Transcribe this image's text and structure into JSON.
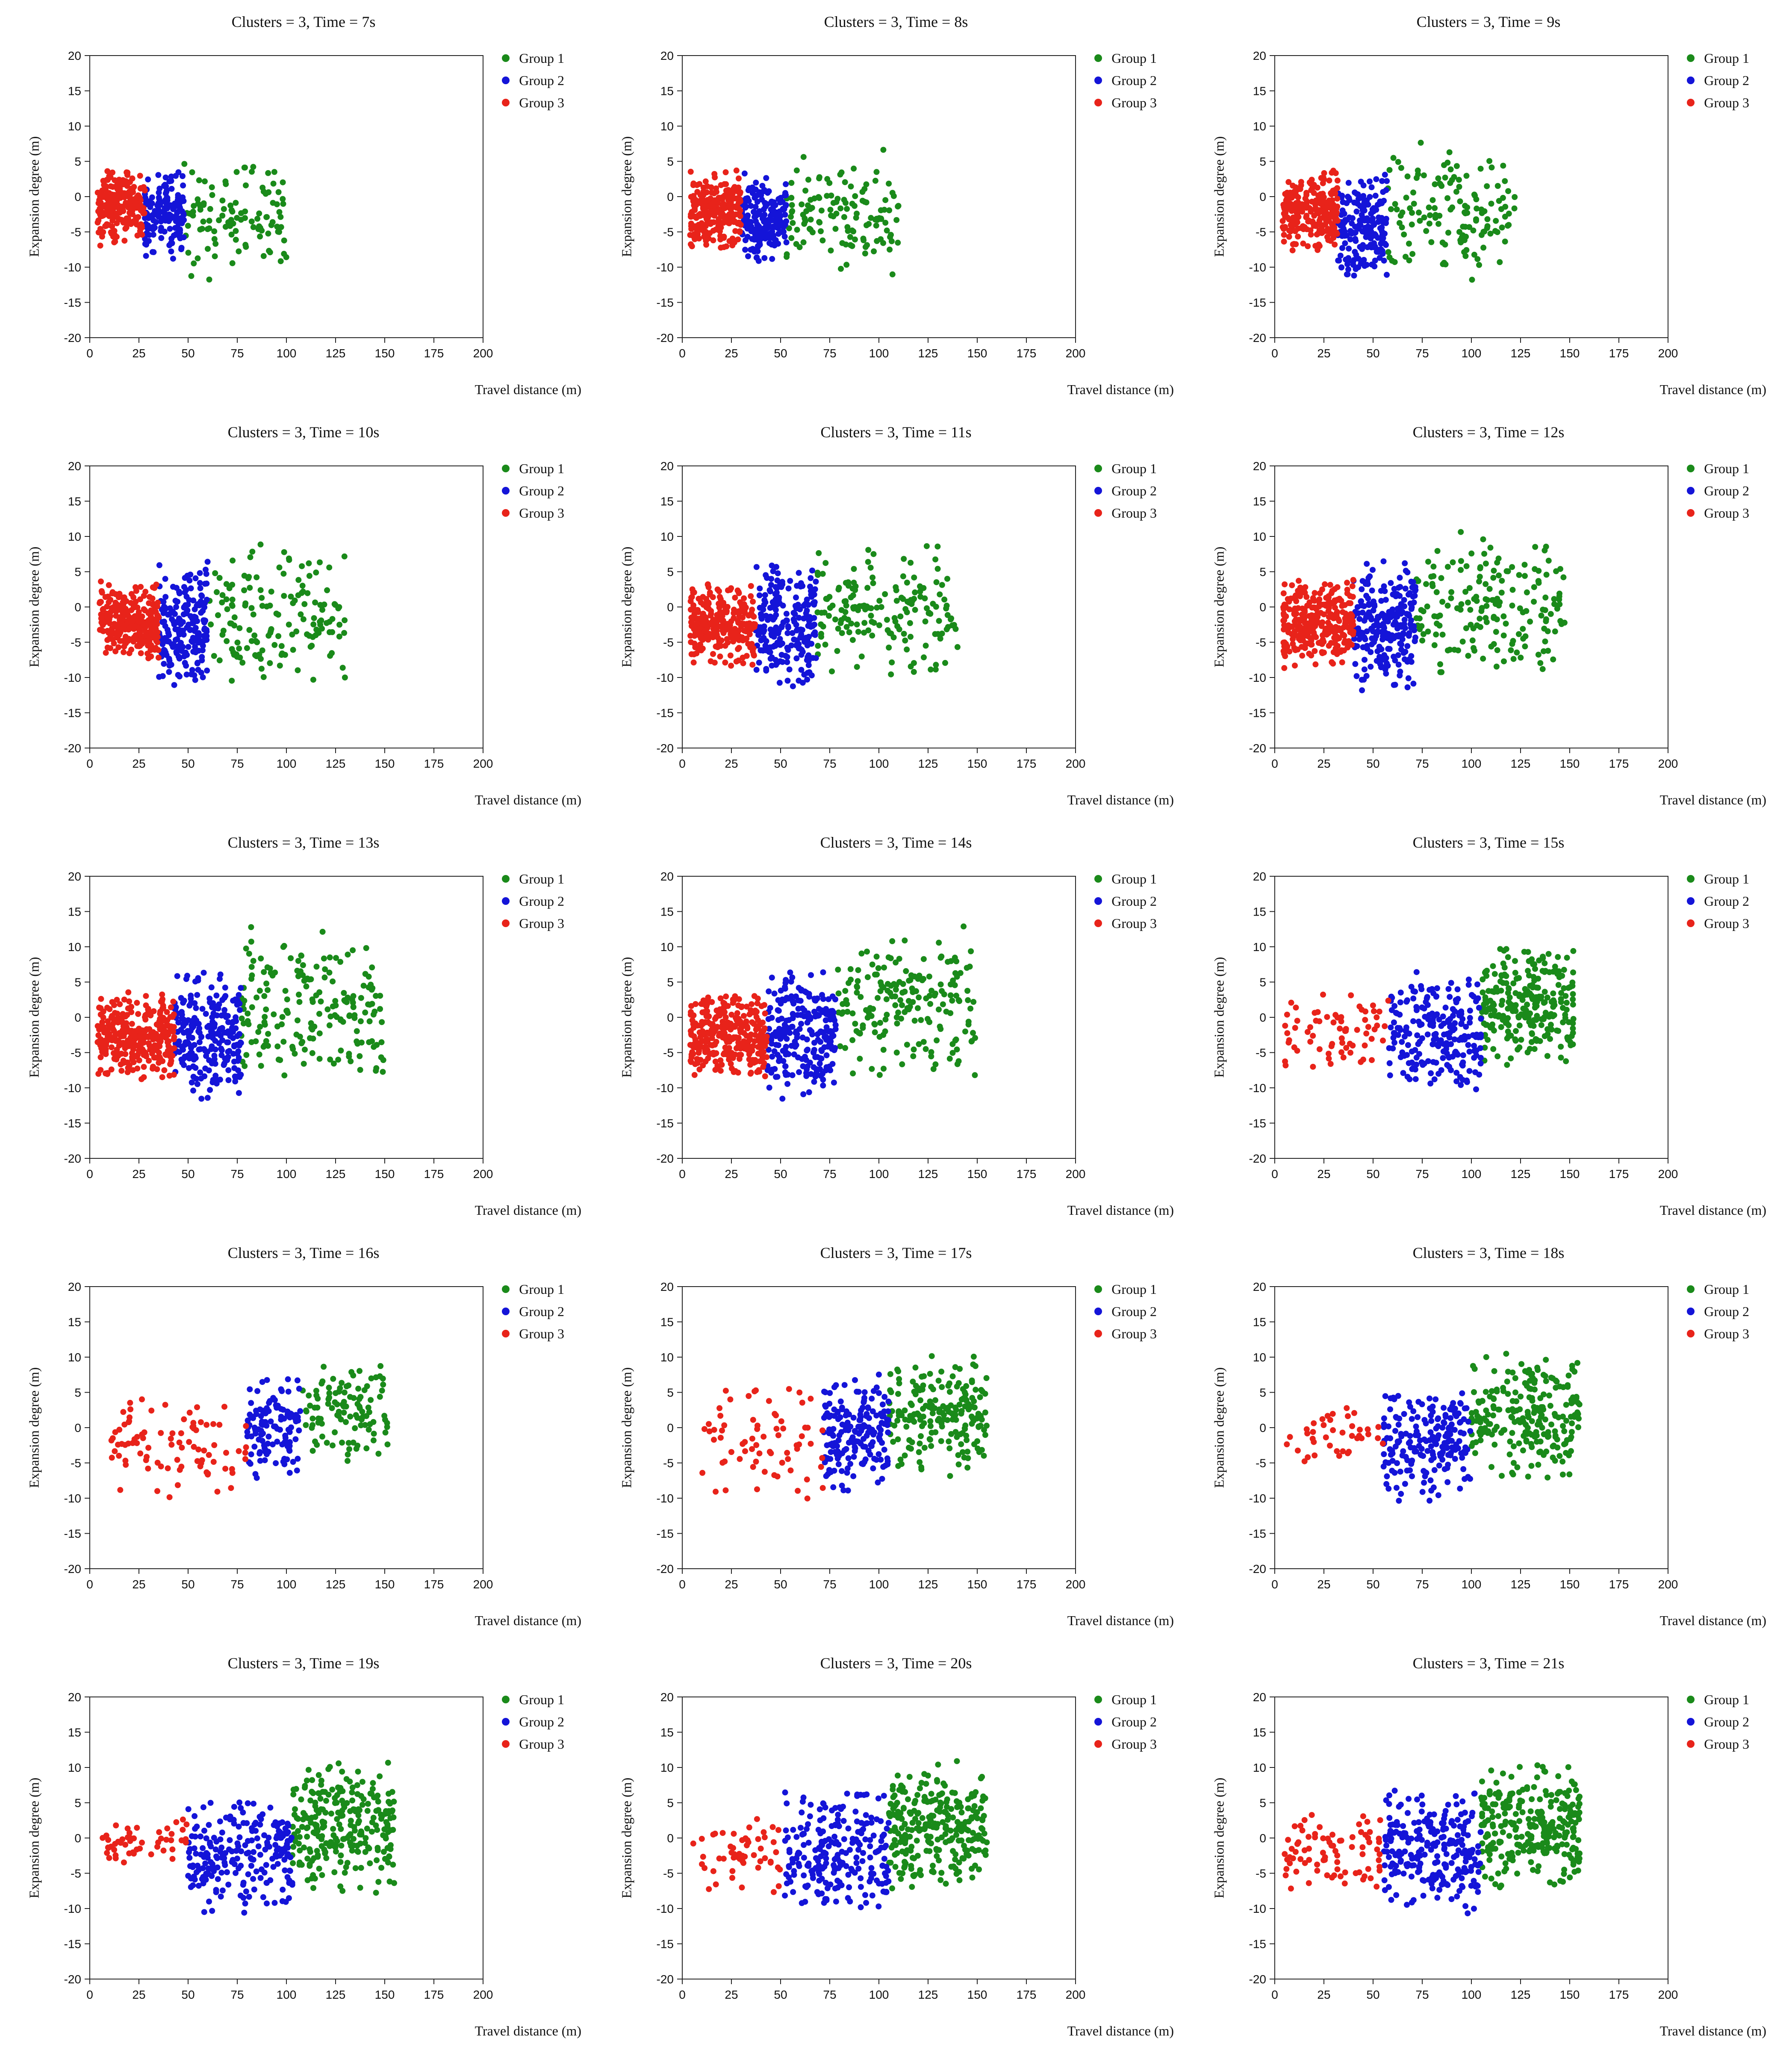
{
  "colors": {
    "group1": "#1a8a1a",
    "group2": "#1414d8",
    "group3": "#e8231a",
    "axis": "#222222"
  },
  "axis_labels": {
    "x": "Travel distance (m)",
    "y": "Expansion degree (m)"
  },
  "legend_labels": [
    "Group 1",
    "Group 2",
    "Group 3"
  ],
  "chart_data": [
    {
      "type": "scatter",
      "title": "Clusters = 3, Time = 7s",
      "xlabel": "Travel distance (m)",
      "ylabel": "Expansion degree (m)",
      "xlim": [
        0,
        200
      ],
      "ylim": [
        -20,
        20
      ],
      "xticks": [
        0,
        25,
        50,
        75,
        100,
        125,
        150,
        175,
        200
      ],
      "yticks": [
        -20,
        -15,
        -10,
        -5,
        0,
        5,
        10,
        15,
        20
      ],
      "legend_position": "top-right",
      "series": [
        {
          "name": "Group 1",
          "color": "#1a8a1a",
          "x_range": [
            48,
            100
          ],
          "y_range": [
            -12,
            6
          ],
          "n": 110
        },
        {
          "name": "Group 2",
          "color": "#1414d8",
          "x_range": [
            28,
            48
          ],
          "y_range": [
            -9,
            4
          ],
          "n": 160
        },
        {
          "name": "Group 3",
          "color": "#e8231a",
          "x_range": [
            4,
            28
          ],
          "y_range": [
            -7,
            4
          ],
          "n": 220
        }
      ]
    },
    {
      "type": "scatter",
      "title": "Clusters = 3, Time = 8s",
      "xlabel": "Travel distance (m)",
      "ylabel": "Expansion degree (m)",
      "xlim": [
        0,
        200
      ],
      "ylim": [
        -20,
        20
      ],
      "xticks": [
        0,
        25,
        50,
        75,
        100,
        125,
        150,
        175,
        200
      ],
      "yticks": [
        -20,
        -15,
        -10,
        -5,
        0,
        5,
        10,
        15,
        20
      ],
      "legend_position": "top-right",
      "series": [
        {
          "name": "Group 1",
          "color": "#1a8a1a",
          "x_range": [
            53,
            110
          ],
          "y_range": [
            -12,
            7
          ],
          "n": 130
        },
        {
          "name": "Group 2",
          "color": "#1414d8",
          "x_range": [
            30,
            53
          ],
          "y_range": [
            -10,
            4
          ],
          "n": 180
        },
        {
          "name": "Group 3",
          "color": "#e8231a",
          "x_range": [
            4,
            30
          ],
          "y_range": [
            -8,
            4
          ],
          "n": 240
        }
      ]
    },
    {
      "type": "scatter",
      "title": "Clusters = 3, Time = 9s",
      "xlabel": "Travel distance (m)",
      "ylabel": "Expansion degree (m)",
      "xlim": [
        0,
        200
      ],
      "ylim": [
        -20,
        20
      ],
      "xticks": [
        0,
        25,
        50,
        75,
        100,
        125,
        150,
        175,
        200
      ],
      "yticks": [
        -20,
        -15,
        -10,
        -5,
        0,
        5,
        10,
        15,
        20
      ],
      "legend_position": "top-right",
      "series": [
        {
          "name": "Group 1",
          "color": "#1a8a1a",
          "x_range": [
            57,
            122
          ],
          "y_range": [
            -12,
            8
          ],
          "n": 140
        },
        {
          "name": "Group 2",
          "color": "#1414d8",
          "x_range": [
            32,
            57
          ],
          "y_range": [
            -12,
            4
          ],
          "n": 190
        },
        {
          "name": "Group 3",
          "color": "#e8231a",
          "x_range": [
            4,
            32
          ],
          "y_range": [
            -8,
            4
          ],
          "n": 250
        }
      ]
    },
    {
      "type": "scatter",
      "title": "Clusters = 3, Time = 10s",
      "xlabel": "Travel distance (m)",
      "ylabel": "Expansion degree (m)",
      "xlim": [
        0,
        200
      ],
      "ylim": [
        -20,
        20
      ],
      "xticks": [
        0,
        25,
        50,
        75,
        100,
        125,
        150,
        175,
        200
      ],
      "yticks": [
        -20,
        -15,
        -10,
        -5,
        0,
        5,
        10,
        15,
        20
      ],
      "legend_position": "top-right",
      "series": [
        {
          "name": "Group 1",
          "color": "#1a8a1a",
          "x_range": [
            60,
            130
          ],
          "y_range": [
            -12,
            9
          ],
          "n": 150
        },
        {
          "name": "Group 2",
          "color": "#1414d8",
          "x_range": [
            35,
            60
          ],
          "y_range": [
            -12,
            7
          ],
          "n": 200
        },
        {
          "name": "Group 3",
          "color": "#e8231a",
          "x_range": [
            5,
            35
          ],
          "y_range": [
            -8,
            4
          ],
          "n": 260
        }
      ]
    },
    {
      "type": "scatter",
      "title": "Clusters = 3, Time = 11s",
      "xlabel": "Travel distance (m)",
      "ylabel": "Expansion degree (m)",
      "xlim": [
        0,
        200
      ],
      "ylim": [
        -20,
        20
      ],
      "xticks": [
        0,
        25,
        50,
        75,
        100,
        125,
        150,
        175,
        200
      ],
      "yticks": [
        -20,
        -15,
        -10,
        -5,
        0,
        5,
        10,
        15,
        20
      ],
      "legend_position": "top-right",
      "series": [
        {
          "name": "Group 1",
          "color": "#1a8a1a",
          "x_range": [
            68,
            140
          ],
          "y_range": [
            -11,
            10
          ],
          "n": 170
        },
        {
          "name": "Group 2",
          "color": "#1414d8",
          "x_range": [
            37,
            68
          ],
          "y_range": [
            -12,
            7
          ],
          "n": 220
        },
        {
          "name": "Group 3",
          "color": "#e8231a",
          "x_range": [
            4,
            37
          ],
          "y_range": [
            -9,
            4
          ],
          "n": 280
        }
      ]
    },
    {
      "type": "scatter",
      "title": "Clusters = 3, Time = 12s",
      "xlabel": "Travel distance (m)",
      "ylabel": "Expansion degree (m)",
      "xlim": [
        0,
        200
      ],
      "ylim": [
        -20,
        20
      ],
      "xticks": [
        0,
        25,
        50,
        75,
        100,
        125,
        150,
        175,
        200
      ],
      "yticks": [
        -20,
        -15,
        -10,
        -5,
        0,
        5,
        10,
        15,
        20
      ],
      "legend_position": "top-right",
      "series": [
        {
          "name": "Group 1",
          "color": "#1a8a1a",
          "x_range": [
            72,
            148
          ],
          "y_range": [
            -11,
            11
          ],
          "n": 180
        },
        {
          "name": "Group 2",
          "color": "#1414d8",
          "x_range": [
            40,
            72
          ],
          "y_range": [
            -12,
            7
          ],
          "n": 230
        },
        {
          "name": "Group 3",
          "color": "#e8231a",
          "x_range": [
            4,
            40
          ],
          "y_range": [
            -9,
            4
          ],
          "n": 290
        }
      ]
    },
    {
      "type": "scatter",
      "title": "Clusters = 3, Time = 13s",
      "xlabel": "Travel distance (m)",
      "ylabel": "Expansion degree (m)",
      "xlim": [
        0,
        200
      ],
      "ylim": [
        -20,
        20
      ],
      "xticks": [
        0,
        25,
        50,
        75,
        100,
        125,
        150,
        175,
        200
      ],
      "yticks": [
        -20,
        -15,
        -10,
        -5,
        0,
        5,
        10,
        15,
        20
      ],
      "legend_position": "top-right",
      "series": [
        {
          "name": "Group 1",
          "color": "#1a8a1a",
          "x_range": [
            77,
            150
          ],
          "y_range": [
            -10,
            13
          ],
          "n": 190
        },
        {
          "name": "Group 2",
          "color": "#1414d8",
          "x_range": [
            43,
            77
          ],
          "y_range": [
            -12,
            7
          ],
          "n": 240
        },
        {
          "name": "Group 3",
          "color": "#e8231a",
          "x_range": [
            4,
            43
          ],
          "y_range": [
            -9,
            4
          ],
          "n": 320
        }
      ]
    },
    {
      "type": "scatter",
      "title": "Clusters = 3, Time = 14s",
      "xlabel": "Travel distance (m)",
      "ylabel": "Expansion degree (m)",
      "xlim": [
        0,
        200
      ],
      "ylim": [
        -20,
        20
      ],
      "xticks": [
        0,
        25,
        50,
        75,
        100,
        125,
        150,
        175,
        200
      ],
      "yticks": [
        -20,
        -15,
        -10,
        -5,
        0,
        5,
        10,
        15,
        20
      ],
      "legend_position": "top-right",
      "series": [
        {
          "name": "Group 1",
          "color": "#1a8a1a",
          "x_range": [
            78,
            150
          ],
          "y_range": [
            -10,
            13
          ],
          "n": 190
        },
        {
          "name": "Group 2",
          "color": "#1414d8",
          "x_range": [
            43,
            78
          ],
          "y_range": [
            -12,
            7
          ],
          "n": 240
        },
        {
          "name": "Group 3",
          "color": "#e8231a",
          "x_range": [
            4,
            43
          ],
          "y_range": [
            -9,
            4
          ],
          "n": 320
        }
      ]
    },
    {
      "type": "scatter",
      "title": "Clusters = 3, Time = 15s",
      "xlabel": "Travel distance (m)",
      "ylabel": "Expansion degree (m)",
      "xlim": [
        0,
        200
      ],
      "ylim": [
        -20,
        20
      ],
      "xticks": [
        0,
        25,
        50,
        75,
        100,
        125,
        150,
        175,
        200
      ],
      "yticks": [
        -20,
        -15,
        -10,
        -5,
        0,
        5,
        10,
        15,
        20
      ],
      "legend_position": "top-right",
      "series": [
        {
          "name": "Group 1",
          "color": "#1a8a1a",
          "x_range": [
            105,
            152
          ],
          "y_range": [
            -7,
            11
          ],
          "n": 260
        },
        {
          "name": "Group 2",
          "color": "#1414d8",
          "x_range": [
            58,
            105
          ],
          "y_range": [
            -11,
            7
          ],
          "n": 220
        },
        {
          "name": "Group 3",
          "color": "#e8231a",
          "x_range": [
            5,
            58
          ],
          "y_range": [
            -9,
            4
          ],
          "n": 70
        }
      ]
    },
    {
      "type": "scatter",
      "title": "Clusters = 3, Time = 16s",
      "xlabel": "Travel distance (m)",
      "ylabel": "Expansion degree (m)",
      "xlim": [
        0,
        200
      ],
      "ylim": [
        -20,
        20
      ],
      "xticks": [
        0,
        25,
        50,
        75,
        100,
        125,
        150,
        175,
        200
      ],
      "yticks": [
        -20,
        -15,
        -10,
        -5,
        0,
        5,
        10,
        15,
        20
      ],
      "legend_position": "top-right",
      "series": [
        {
          "name": "Group 1",
          "color": "#1a8a1a",
          "x_range": [
            108,
            152
          ],
          "y_range": [
            -5,
            9
          ],
          "n": 110
        },
        {
          "name": "Group 2",
          "color": "#1414d8",
          "x_range": [
            80,
            108
          ],
          "y_range": [
            -8,
            8
          ],
          "n": 120
        },
        {
          "name": "Group 3",
          "color": "#e8231a",
          "x_range": [
            10,
            80
          ],
          "y_range": [
            -11,
            6
          ],
          "n": 90
        }
      ]
    },
    {
      "type": "scatter",
      "title": "Clusters = 3, Time = 17s",
      "xlabel": "Travel distance (m)",
      "ylabel": "Expansion degree (m)",
      "xlim": [
        0,
        200
      ],
      "ylim": [
        -20,
        20
      ],
      "xticks": [
        0,
        25,
        50,
        75,
        100,
        125,
        150,
        175,
        200
      ],
      "yticks": [
        -20,
        -15,
        -10,
        -5,
        0,
        5,
        10,
        15,
        20
      ],
      "legend_position": "top-right",
      "series": [
        {
          "name": "Group 1",
          "color": "#1a8a1a",
          "x_range": [
            105,
            155
          ],
          "y_range": [
            -7,
            11
          ],
          "n": 200
        },
        {
          "name": "Group 2",
          "color": "#1414d8",
          "x_range": [
            72,
            105
          ],
          "y_range": [
            -10,
            8
          ],
          "n": 180
        },
        {
          "name": "Group 3",
          "color": "#e8231a",
          "x_range": [
            10,
            72
          ],
          "y_range": [
            -11,
            6
          ],
          "n": 70
        }
      ]
    },
    {
      "type": "scatter",
      "title": "Clusters = 3, Time = 18s",
      "xlabel": "Travel distance (m)",
      "ylabel": "Expansion degree (m)",
      "xlim": [
        0,
        200
      ],
      "ylim": [
        -20,
        20
      ],
      "xticks": [
        0,
        25,
        50,
        75,
        100,
        125,
        150,
        175,
        200
      ],
      "yticks": [
        -20,
        -15,
        -10,
        -5,
        0,
        5,
        10,
        15,
        20
      ],
      "legend_position": "top-right",
      "series": [
        {
          "name": "Group 1",
          "color": "#1a8a1a",
          "x_range": [
            100,
            155
          ],
          "y_range": [
            -8,
            11
          ],
          "n": 230
        },
        {
          "name": "Group 2",
          "color": "#1414d8",
          "x_range": [
            55,
            100
          ],
          "y_range": [
            -11,
            6
          ],
          "n": 200
        },
        {
          "name": "Group 3",
          "color": "#e8231a",
          "x_range": [
            6,
            55
          ],
          "y_range": [
            -5,
            3
          ],
          "n": 40
        }
      ]
    },
    {
      "type": "scatter",
      "title": "Clusters = 3, Time = 19s",
      "xlabel": "Travel distance (m)",
      "ylabel": "Expansion degree (m)",
      "xlim": [
        0,
        200
      ],
      "ylim": [
        -20,
        20
      ],
      "xticks": [
        0,
        25,
        50,
        75,
        100,
        125,
        150,
        175,
        200
      ],
      "yticks": [
        -20,
        -15,
        -10,
        -5,
        0,
        5,
        10,
        15,
        20
      ],
      "legend_position": "top-right",
      "series": [
        {
          "name": "Group 1",
          "color": "#1a8a1a",
          "x_range": [
            103,
            155
          ],
          "y_range": [
            -8,
            11
          ],
          "n": 260
        },
        {
          "name": "Group 2",
          "color": "#1414d8",
          "x_range": [
            50,
            103
          ],
          "y_range": [
            -11,
            6
          ],
          "n": 220
        },
        {
          "name": "Group 3",
          "color": "#e8231a",
          "x_range": [
            5,
            50
          ],
          "y_range": [
            -5,
            4
          ],
          "n": 50
        }
      ]
    },
    {
      "type": "scatter",
      "title": "Clusters = 3, Time = 20s",
      "xlabel": "Travel distance (m)",
      "ylabel": "Expansion degree (m)",
      "xlim": [
        0,
        200
      ],
      "ylim": [
        -20,
        20
      ],
      "xticks": [
        0,
        25,
        50,
        75,
        100,
        125,
        150,
        175,
        200
      ],
      "yticks": [
        -20,
        -15,
        -10,
        -5,
        0,
        5,
        10,
        15,
        20
      ],
      "legend_position": "top-right",
      "series": [
        {
          "name": "Group 1",
          "color": "#1a8a1a",
          "x_range": [
            105,
            155
          ],
          "y_range": [
            -8,
            11
          ],
          "n": 270
        },
        {
          "name": "Group 2",
          "color": "#1414d8",
          "x_range": [
            52,
            105
          ],
          "y_range": [
            -11,
            7
          ],
          "n": 230
        },
        {
          "name": "Group 3",
          "color": "#e8231a",
          "x_range": [
            5,
            52
          ],
          "y_range": [
            -9,
            4
          ],
          "n": 55
        }
      ]
    },
    {
      "type": "scatter",
      "title": "Clusters = 3, Time = 21s",
      "xlabel": "Travel distance (m)",
      "ylabel": "Expansion degree (m)",
      "xlim": [
        0,
        200
      ],
      "ylim": [
        -20,
        20
      ],
      "xticks": [
        0,
        25,
        50,
        75,
        100,
        125,
        150,
        175,
        200
      ],
      "yticks": [
        -20,
        -15,
        -10,
        -5,
        0,
        5,
        10,
        15,
        20
      ],
      "legend_position": "top-right",
      "series": [
        {
          "name": "Group 1",
          "color": "#1a8a1a",
          "x_range": [
            105,
            155
          ],
          "y_range": [
            -8,
            11
          ],
          "n": 280
        },
        {
          "name": "Group 2",
          "color": "#1414d8",
          "x_range": [
            55,
            105
          ],
          "y_range": [
            -11,
            7
          ],
          "n": 240
        },
        {
          "name": "Group 3",
          "color": "#e8231a",
          "x_range": [
            5,
            55
          ],
          "y_range": [
            -9,
            4
          ],
          "n": 80
        }
      ]
    }
  ]
}
